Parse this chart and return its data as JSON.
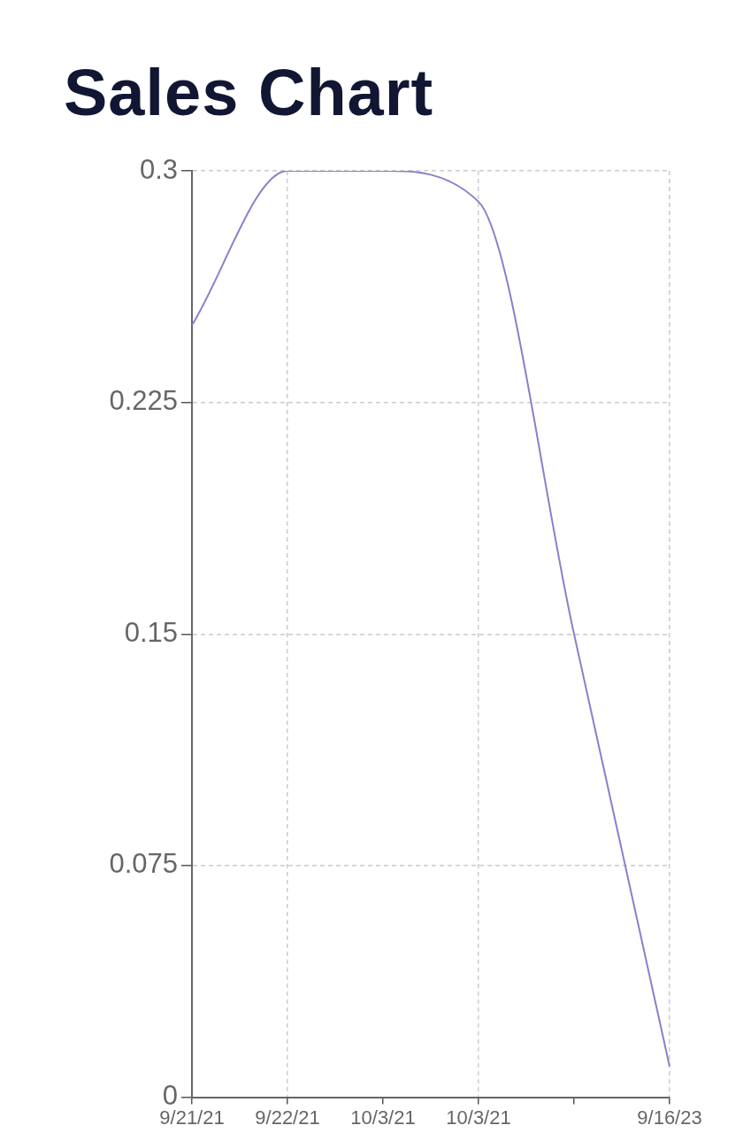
{
  "chart_data": {
    "type": "line",
    "title": "Sales Chart",
    "categories": [
      "9/21/21",
      "9/22/21",
      "10/3/21",
      "10/3/21",
      null,
      "9/16/23"
    ],
    "series": [
      {
        "color": "#8880cc",
        "values": [
          0.25,
          0.3,
          0.3,
          0.29,
          0.15,
          0.01
        ]
      }
    ],
    "ylim": [
      0,
      0.3
    ],
    "yticks": [
      0,
      0.075,
      0.15,
      0.225,
      0.3
    ],
    "grid": true,
    "legend": false,
    "marker": "none",
    "line_style": "solid"
  }
}
